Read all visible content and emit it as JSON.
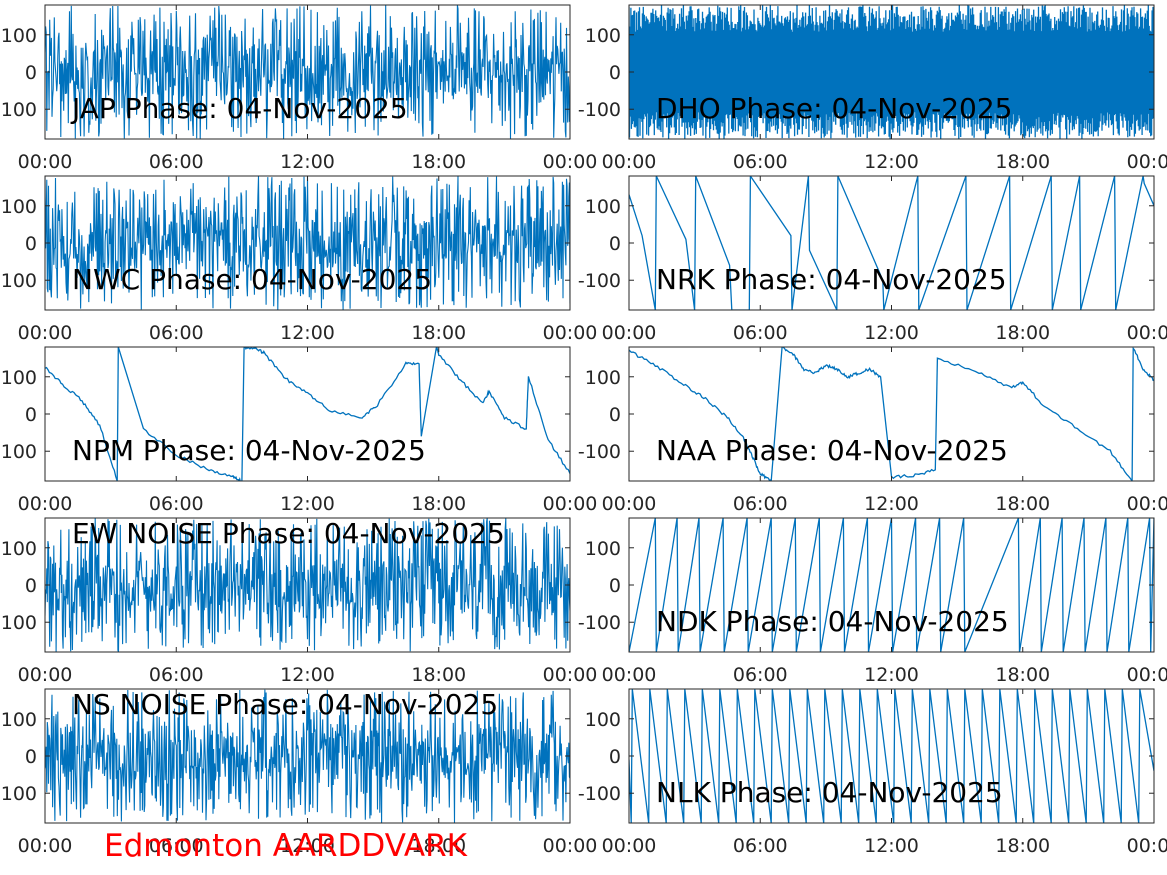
{
  "footer_text": "Edmonton AARDDVARK",
  "colors": {
    "line": "#0072bd",
    "axes": "#262626",
    "footer": "#ff0000",
    "background": "#ffffff"
  },
  "chart_data": [
    {
      "type": "line",
      "title": "JAP Phase: 04-Nov-2025",
      "xlabel": "",
      "ylabel": "",
      "xlim": [
        "00:00",
        "24:00"
      ],
      "ylim": [
        -180,
        180
      ],
      "xticks": [
        "00:00",
        "06:00",
        "12:00",
        "18:00",
        "00:00"
      ],
      "yticks": [
        "-100",
        "0",
        "100"
      ],
      "series": [
        {
          "pattern": "noise",
          "x": [
            0,
            24
          ],
          "y": [
            -180,
            180
          ]
        }
      ]
    },
    {
      "type": "line",
      "title": "DHO Phase: 04-Nov-2025",
      "xlabel": "",
      "ylabel": "",
      "xlim": [
        "00:00",
        "24:00"
      ],
      "ylim": [
        -180,
        180
      ],
      "xticks": [
        "00:00",
        "06:00",
        "12:00",
        "18:00",
        "00:00"
      ],
      "yticks": [
        "-100",
        "0",
        "100"
      ],
      "series": [
        {
          "pattern": "dense-sawtooth",
          "x": [
            0,
            24
          ],
          "y": [
            -180,
            180
          ]
        }
      ]
    },
    {
      "type": "line",
      "title": "NWC Phase: 04-Nov-2025",
      "xlabel": "",
      "ylabel": "",
      "xlim": [
        "00:00",
        "24:00"
      ],
      "ylim": [
        -180,
        180
      ],
      "xticks": [
        "00:00",
        "06:00",
        "12:00",
        "18:00",
        "00:00"
      ],
      "yticks": [
        "-100",
        "0",
        "100"
      ],
      "series": [
        {
          "pattern": "noise",
          "x": [
            0,
            24
          ],
          "y": [
            -180,
            180
          ]
        }
      ]
    },
    {
      "type": "line",
      "title": "NRK Phase: 04-Nov-2025",
      "xlabel": "",
      "ylabel": "",
      "xlim": [
        "00:00",
        "24:00"
      ],
      "ylim": [
        -180,
        180
      ],
      "xticks": [
        "00:00",
        "06:00",
        "12:00",
        "18:00",
        "00:00"
      ],
      "yticks": [
        "-100",
        "0",
        "100"
      ],
      "series": [
        {
          "pattern": "wrapped",
          "x": [
            0,
            0.6,
            1.2,
            1.25,
            2.6,
            3.0,
            3.05,
            4.6,
            4.7,
            5.0,
            5.5,
            5.55,
            7.4,
            7.45,
            8.2,
            8.25,
            9.5,
            9.55,
            11.6,
            11.65,
            13.2,
            13.25,
            15.4,
            15.45,
            17.4,
            17.45,
            19.3,
            19.35,
            20.6,
            20.65,
            22.2,
            22.25,
            23.5,
            23.55,
            24
          ],
          "y": [
            130,
            20,
            -180,
            180,
            10,
            -180,
            180,
            -60,
            -180,
            -180,
            -180,
            180,
            20,
            -180,
            180,
            -20,
            -180,
            180,
            -100,
            -180,
            180,
            -180,
            180,
            -180,
            180,
            -180,
            180,
            -180,
            180,
            -180,
            180,
            -180,
            180,
            160,
            100
          ]
        }
      ]
    },
    {
      "type": "line",
      "title": "NPM Phase: 04-Nov-2025",
      "xlabel": "",
      "ylabel": "",
      "xlim": [
        "00:00",
        "24:00"
      ],
      "ylim": [
        -180,
        180
      ],
      "xticks": [
        "00:00",
        "06:00",
        "12:00",
        "18:00",
        "00:00"
      ],
      "yticks": [
        "-100",
        "0",
        "100"
      ],
      "series": [
        {
          "pattern": "smooth",
          "x": [
            0,
            0.8,
            1.7,
            2.5,
            3.3,
            3.35,
            4.5,
            6.0,
            7.5,
            8.6,
            9.0,
            9.1,
            9.6,
            10.0,
            11.0,
            12.0,
            13.0,
            14.5,
            15.2,
            16.5,
            17.1,
            17.2,
            17.9,
            18.0,
            19.0,
            20.0,
            20.3,
            21.0,
            22.0,
            22.1,
            23.0,
            24.0
          ],
          "y": [
            125,
            80,
            35,
            -30,
            -180,
            180,
            -40,
            -110,
            -150,
            -170,
            -180,
            180,
            175,
            165,
            95,
            55,
            10,
            -10,
            25,
            135,
            135,
            -60,
            180,
            160,
            90,
            30,
            60,
            -10,
            -40,
            100,
            -70,
            -160
          ]
        }
      ]
    },
    {
      "type": "line",
      "title": "NAA Phase: 04-Nov-2025",
      "xlabel": "",
      "ylabel": "",
      "xlim": [
        "00:00",
        "24:00"
      ],
      "ylim": [
        -180,
        180
      ],
      "xticks": [
        "00:00",
        "06:00",
        "12:00",
        "18:00",
        "00:00"
      ],
      "yticks": [
        "-100",
        "0",
        "100"
      ],
      "series": [
        {
          "pattern": "smooth",
          "x": [
            0,
            1.2,
            2.5,
            3.5,
            4.5,
            5.2,
            5.6,
            6.0,
            6.5,
            7.0,
            7.5,
            8.0,
            8.5,
            9.0,
            9.5,
            10.0,
            10.5,
            11.0,
            11.5,
            12.0,
            13.0,
            14.0,
            14.1,
            16.0,
            17.5,
            18.0,
            19.0,
            20.5,
            22.0,
            23.0,
            23.05,
            23.5,
            24.0
          ],
          "y": [
            170,
            130,
            80,
            40,
            -10,
            -60,
            -110,
            -160,
            -180,
            180,
            160,
            120,
            110,
            130,
            120,
            100,
            110,
            120,
            100,
            -170,
            -165,
            -150,
            150,
            110,
            70,
            85,
            20,
            -40,
            -100,
            -180,
            180,
            120,
            90
          ]
        }
      ]
    },
    {
      "type": "line",
      "title": "EW NOISE Phase: 04-Nov-2025",
      "xlabel": "",
      "ylabel": "",
      "xlim": [
        "00:00",
        "24:00"
      ],
      "ylim": [
        -180,
        180
      ],
      "xticks": [
        "00:00",
        "06:00",
        "12:00",
        "18:00",
        "00:00"
      ],
      "yticks": [
        "-100",
        "0",
        "100"
      ],
      "series": [
        {
          "pattern": "noise",
          "x": [
            0,
            24
          ],
          "y": [
            -180,
            180
          ]
        }
      ]
    },
    {
      "type": "line",
      "title": "NDK Phase: 04-Nov-2025",
      "xlabel": "",
      "ylabel": "",
      "xlim": [
        "00:00",
        "24:00"
      ],
      "ylim": [
        -180,
        180
      ],
      "xticks": [
        "00:00",
        "06:00",
        "12:00",
        "18:00",
        "00:00"
      ],
      "yticks": [
        "-100",
        "0",
        "100"
      ],
      "series": [
        {
          "pattern": "wrapped",
          "x": [
            0,
            1.2,
            1.25,
            2.2,
            2.25,
            3.2,
            3.25,
            4.3,
            4.35,
            5.4,
            5.45,
            6.5,
            6.55,
            7.6,
            7.65,
            8.7,
            8.75,
            9.8,
            9.85,
            10.9,
            10.95,
            12.0,
            12.05,
            13.1,
            13.15,
            14.2,
            14.25,
            15.3,
            15.35,
            17.8,
            17.85,
            18.8,
            18.85,
            19.8,
            19.85,
            20.8,
            20.85,
            21.8,
            21.85,
            22.8,
            22.85,
            23.8,
            23.85,
            24
          ],
          "y": [
            -180,
            180,
            -180,
            180,
            -180,
            180,
            -180,
            180,
            -180,
            180,
            -180,
            180,
            -180,
            180,
            -180,
            180,
            -180,
            180,
            -180,
            180,
            -180,
            180,
            -180,
            180,
            -180,
            180,
            -180,
            180,
            -180,
            180,
            -180,
            180,
            -180,
            180,
            -180,
            180,
            -180,
            180,
            -180,
            180,
            -180,
            180,
            -180,
            180
          ]
        }
      ]
    },
    {
      "type": "line",
      "title": "NS NOISE Phase: 04-Nov-2025",
      "xlabel": "",
      "ylabel": "",
      "xlim": [
        "00:00",
        "24:00"
      ],
      "ylim": [
        -180,
        180
      ],
      "xticks": [
        "00:00",
        "06:00",
        "12:00",
        "18:00",
        "00:00"
      ],
      "yticks": [
        "-100",
        "0",
        "100"
      ],
      "series": [
        {
          "pattern": "noise",
          "x": [
            0,
            24
          ],
          "y": [
            -180,
            180
          ]
        }
      ]
    },
    {
      "type": "line",
      "title": "NLK Phase: 04-Nov-2025",
      "xlabel": "",
      "ylabel": "",
      "xlim": [
        "00:00",
        "24:00"
      ],
      "ylim": [
        -180,
        180
      ],
      "xticks": [
        "00:00",
        "06:00",
        "12:00",
        "18:00",
        "00:00"
      ],
      "yticks": [
        "-100",
        "0",
        "100"
      ],
      "series": [
        {
          "pattern": "wrapped",
          "x": [
            0,
            0.1,
            0.15,
            0.9,
            0.95,
            1.7,
            1.75,
            2.5,
            2.55,
            3.3,
            3.35,
            4.1,
            4.15,
            4.9,
            4.95,
            5.7,
            5.75,
            6.5,
            6.55,
            7.3,
            7.35,
            8.1,
            8.15,
            8.9,
            8.95,
            9.7,
            9.75,
            10.5,
            10.55,
            11.3,
            11.35,
            12.1,
            12.15,
            12.9,
            12.95,
            13.7,
            13.75,
            14.5,
            14.55,
            15.3,
            15.35,
            16.1,
            16.15,
            16.9,
            16.95,
            17.7,
            17.75,
            18.5,
            18.55,
            19.3,
            19.35,
            20.1,
            20.15,
            20.9,
            20.95,
            21.7,
            21.75,
            22.5,
            22.55,
            23.3,
            23.35,
            24
          ],
          "y": [
            -10,
            -180,
            180,
            -180,
            180,
            -180,
            180,
            -180,
            180,
            -180,
            180,
            -180,
            180,
            -180,
            180,
            -180,
            180,
            -180,
            180,
            -180,
            180,
            -180,
            180,
            -180,
            180,
            -180,
            180,
            -180,
            180,
            -180,
            180,
            -180,
            180,
            -180,
            180,
            -180,
            180,
            -180,
            180,
            -180,
            180,
            -180,
            180,
            -180,
            180,
            -180,
            180,
            -180,
            180,
            -180,
            180,
            -180,
            180,
            -180,
            180,
            -180,
            180,
            -180,
            180,
            -180,
            180,
            -40
          ]
        }
      ]
    }
  ]
}
